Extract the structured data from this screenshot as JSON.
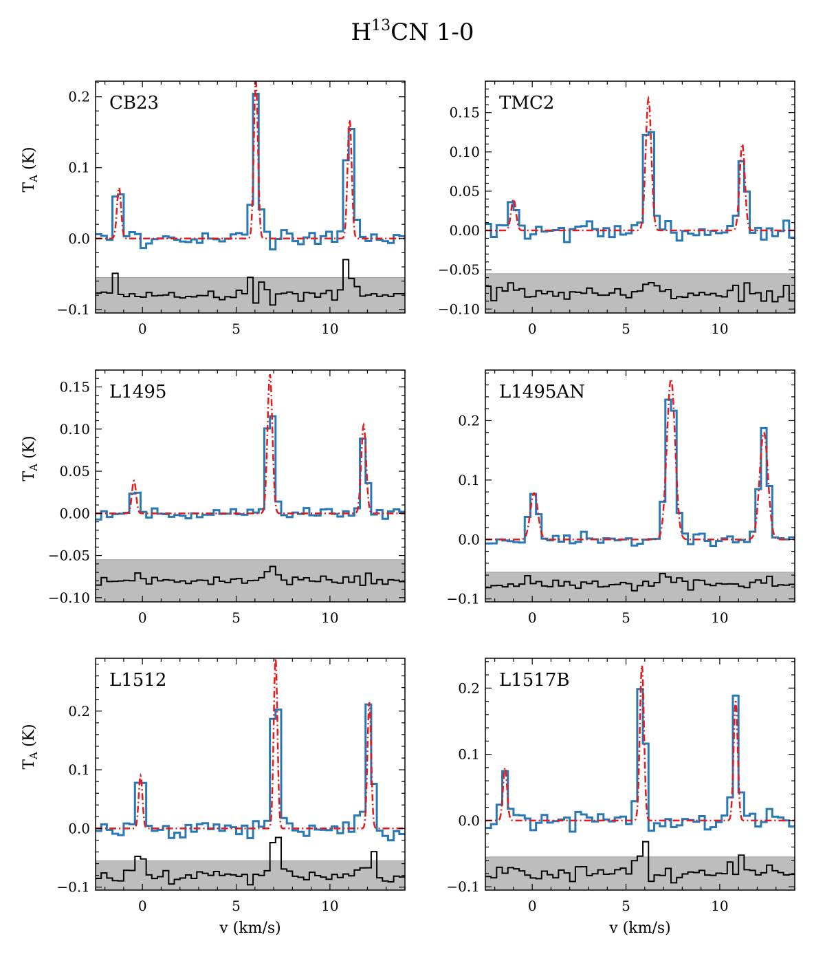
{
  "figure": {
    "title_main": "H",
    "title_sup": "13",
    "title_rest": "CN 1-0",
    "xlabel": "v (km/s)",
    "ylabel_main": "T",
    "ylabel_sub": "A",
    "ylabel_unit": " (K)"
  },
  "colors": {
    "spectrum": "#2878b5",
    "model": "#e41a1c",
    "residual": "#000000",
    "residual_band": "#bdbdbd"
  },
  "chart_data": [
    {
      "type": "line",
      "source": "CB23",
      "xlim": [
        -2.5,
        14
      ],
      "ylim": [
        -0.105,
        0.222
      ],
      "xticks": [
        0,
        5,
        10
      ],
      "yticks": [
        -0.1,
        0.0,
        0.1,
        0.2
      ],
      "ytick_labels": [
        "−0.1",
        "0.0",
        "0.1",
        "0.2"
      ],
      "hyperfine_components": [
        {
          "v": -1.25,
          "peak": 0.072,
          "sigma": 0.11
        },
        {
          "v": 6.05,
          "peak": 0.222,
          "sigma": 0.11
        },
        {
          "v": 11.05,
          "peak": 0.168,
          "sigma": 0.11
        }
      ],
      "spectrum_peaks": [
        0.087,
        0.2,
        0.176
      ],
      "residual_band": [
        -0.105,
        -0.055
      ],
      "residual_offset": -0.08,
      "noise": 0.008,
      "seed": 3
    },
    {
      "type": "line",
      "source": "TMC2",
      "xlim": [
        -2.5,
        14
      ],
      "ylim": [
        -0.105,
        0.19
      ],
      "xticks": [
        0,
        5,
        10
      ],
      "yticks": [
        -0.1,
        -0.05,
        0.0,
        0.05,
        0.1,
        0.15
      ],
      "ytick_labels": [
        "−0.10",
        "−0.05",
        "0.00",
        "0.05",
        "0.10",
        "0.15"
      ],
      "hyperfine_components": [
        {
          "v": -1.0,
          "peak": 0.04,
          "sigma": 0.13
        },
        {
          "v": 6.2,
          "peak": 0.168,
          "sigma": 0.15
        },
        {
          "v": 11.2,
          "peak": 0.11,
          "sigma": 0.14
        }
      ],
      "spectrum_peaks": [
        0.042,
        0.168,
        0.105
      ],
      "residual_band": [
        -0.105,
        -0.055
      ],
      "residual_offset": -0.08,
      "noise": 0.007,
      "seed": 7
    },
    {
      "type": "line",
      "source": "L1495",
      "xlim": [
        -2.5,
        14
      ],
      "ylim": [
        -0.105,
        0.17
      ],
      "xticks": [
        0,
        5,
        10
      ],
      "yticks": [
        -0.1,
        -0.05,
        0.0,
        0.05,
        0.1,
        0.15
      ],
      "ytick_labels": [
        "−0.10",
        "−0.05",
        "0.00",
        "0.05",
        "0.10",
        "0.15"
      ],
      "hyperfine_components": [
        {
          "v": -0.45,
          "peak": 0.039,
          "sigma": 0.11
        },
        {
          "v": 6.8,
          "peak": 0.165,
          "sigma": 0.13
        },
        {
          "v": 11.8,
          "peak": 0.105,
          "sigma": 0.13
        }
      ],
      "spectrum_peaks": [
        0.035,
        0.16,
        0.098
      ],
      "residual_band": [
        -0.105,
        -0.055
      ],
      "residual_offset": -0.08,
      "noise": 0.004,
      "seed": 11
    },
    {
      "type": "line",
      "source": "L1495AN",
      "xlim": [
        -2.5,
        14
      ],
      "ylim": [
        -0.105,
        0.285
      ],
      "xticks": [
        0,
        5,
        10
      ],
      "yticks": [
        -0.1,
        0.0,
        0.1,
        0.2
      ],
      "ytick_labels": [
        "−0.1",
        "0.0",
        "0.1",
        "0.2"
      ],
      "hyperfine_components": [
        {
          "v": 0.1,
          "peak": 0.078,
          "sigma": 0.2
        },
        {
          "v": 7.4,
          "peak": 0.27,
          "sigma": 0.22
        },
        {
          "v": 12.35,
          "peak": 0.18,
          "sigma": 0.22
        }
      ],
      "spectrum_peaks": [
        0.075,
        0.265,
        0.176
      ],
      "residual_band": [
        -0.105,
        -0.055
      ],
      "residual_offset": -0.075,
      "noise": 0.007,
      "seed": 19
    },
    {
      "type": "line",
      "source": "L1512",
      "xlim": [
        -2.5,
        14
      ],
      "ylim": [
        -0.105,
        0.29
      ],
      "xticks": [
        0,
        5,
        10
      ],
      "yticks": [
        -0.1,
        0.0,
        0.1,
        0.2
      ],
      "ytick_labels": [
        "−0.1",
        "0.0",
        "0.1",
        "0.2"
      ],
      "hyperfine_components": [
        {
          "v": -0.1,
          "peak": 0.09,
          "sigma": 0.1
        },
        {
          "v": 7.1,
          "peak": 0.29,
          "sigma": 0.1
        },
        {
          "v": 12.1,
          "peak": 0.215,
          "sigma": 0.1
        }
      ],
      "spectrum_peaks": [
        0.113,
        0.265,
        0.215
      ],
      "residual_band": [
        -0.105,
        -0.055
      ],
      "residual_offset": -0.08,
      "noise": 0.008,
      "seed": 23
    },
    {
      "type": "line",
      "source": "L1517B",
      "xlim": [
        -2.5,
        14
      ],
      "ylim": [
        -0.105,
        0.245
      ],
      "xticks": [
        0,
        5,
        10
      ],
      "yticks": [
        -0.1,
        0.0,
        0.1,
        0.2
      ],
      "ytick_labels": [
        "−0.1",
        "0.0",
        "0.1",
        "0.2"
      ],
      "hyperfine_components": [
        {
          "v": -1.45,
          "peak": 0.08,
          "sigma": 0.11
        },
        {
          "v": 5.85,
          "peak": 0.235,
          "sigma": 0.11
        },
        {
          "v": 10.85,
          "peak": 0.18,
          "sigma": 0.11
        }
      ],
      "spectrum_peaks": [
        0.07,
        0.222,
        0.175
      ],
      "residual_band": [
        -0.105,
        -0.055
      ],
      "residual_offset": -0.08,
      "noise": 0.008,
      "seed": 31
    }
  ]
}
